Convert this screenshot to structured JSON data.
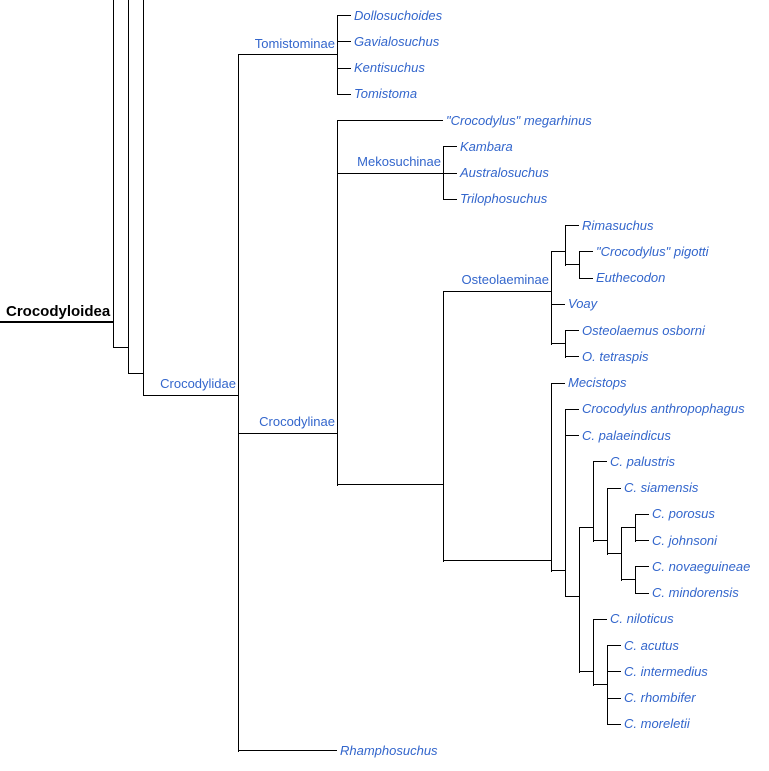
{
  "trunk": {
    "root_label": "Crocodyloidea"
  },
  "colors": {
    "link": "#3366cc",
    "line": "#000000",
    "background": "#ffffff"
  },
  "tree": {
    "id": "crocodylidae",
    "label": "Crocodylidae",
    "children": [
      {
        "id": "tomistominae",
        "label": "Tomistominae",
        "children": [
          {
            "tip": "Dollosuchoides"
          },
          {
            "tip": "Gavialosuchus"
          },
          {
            "tip": "Kentisuchus"
          },
          {
            "tip": "Tomistoma"
          }
        ]
      },
      {
        "id": "crocodylinae",
        "label": "Crocodylinae",
        "children": [
          {
            "tip": "\"Crocodylus\" megarhinus"
          },
          {
            "id": "mekosuchinae",
            "label": "Mekosuchinae",
            "children": [
              {
                "tip": "Kambara"
              },
              {
                "tip": "Australosuchus"
              },
              {
                "tip": "Trilophosuchus"
              }
            ]
          },
          {
            "id": "osteo-core",
            "children": [
              {
                "id": "osteolaeminae",
                "label": "Osteolaeminae",
                "children": [
                  {
                    "id": "rimasuchus-clade",
                    "children": [
                      {
                        "tip": "Rimasuchus"
                      },
                      {
                        "id": "pigotti-euthecodon",
                        "children": [
                          {
                            "tip": "\"Crocodylus\" pigotti"
                          },
                          {
                            "tip": "Euthecodon"
                          }
                        ]
                      }
                    ]
                  },
                  {
                    "tip": "Voay"
                  },
                  {
                    "id": "osteolaemus-clade",
                    "children": [
                      {
                        "tip": "Osteolaemus osborni"
                      },
                      {
                        "tip": "O. tetraspis"
                      }
                    ]
                  }
                ]
              },
              {
                "id": "core",
                "children": [
                  {
                    "tip": "Mecistops"
                  },
                  {
                    "id": "crocodylus",
                    "children": [
                      {
                        "tip": "Crocodylus anthropophagus"
                      },
                      {
                        "tip": "C. palaeindicus"
                      },
                      {
                        "id": "big",
                        "children": [
                          {
                            "id": "palustris-clade",
                            "children": [
                              {
                                "tip": "C. palustris"
                              },
                              {
                                "id": "siamensis-clade",
                                "children": [
                                  {
                                    "tip": "C. siamensis"
                                  },
                                  {
                                    "id": "indopacific",
                                    "children": [
                                      {
                                        "id": "porosus-johnsoni",
                                        "children": [
                                          {
                                            "tip": "C. porosus"
                                          },
                                          {
                                            "tip": "C. johnsoni"
                                          }
                                        ]
                                      },
                                      {
                                        "id": "novaeguineae-mindorensis",
                                        "children": [
                                          {
                                            "tip": "C. novaeguineae"
                                          },
                                          {
                                            "tip": "C. mindorensis"
                                          }
                                        ]
                                      }
                                    ]
                                  }
                                ]
                              }
                            ]
                          },
                          {
                            "id": "niloticus-clade",
                            "children": [
                              {
                                "tip": "C. niloticus"
                              },
                              {
                                "id": "neotropical",
                                "children": [
                                  {
                                    "tip": "C. acutus"
                                  },
                                  {
                                    "tip": "C. intermedius"
                                  },
                                  {
                                    "tip": "C. rhombifer"
                                  },
                                  {
                                    "tip": "C. moreletii"
                                  }
                                ]
                              }
                            ]
                          }
                        ]
                      }
                    ]
                  }
                ]
              }
            ]
          }
        ]
      },
      {
        "tip": "Rhamphosuchus"
      }
    ]
  }
}
